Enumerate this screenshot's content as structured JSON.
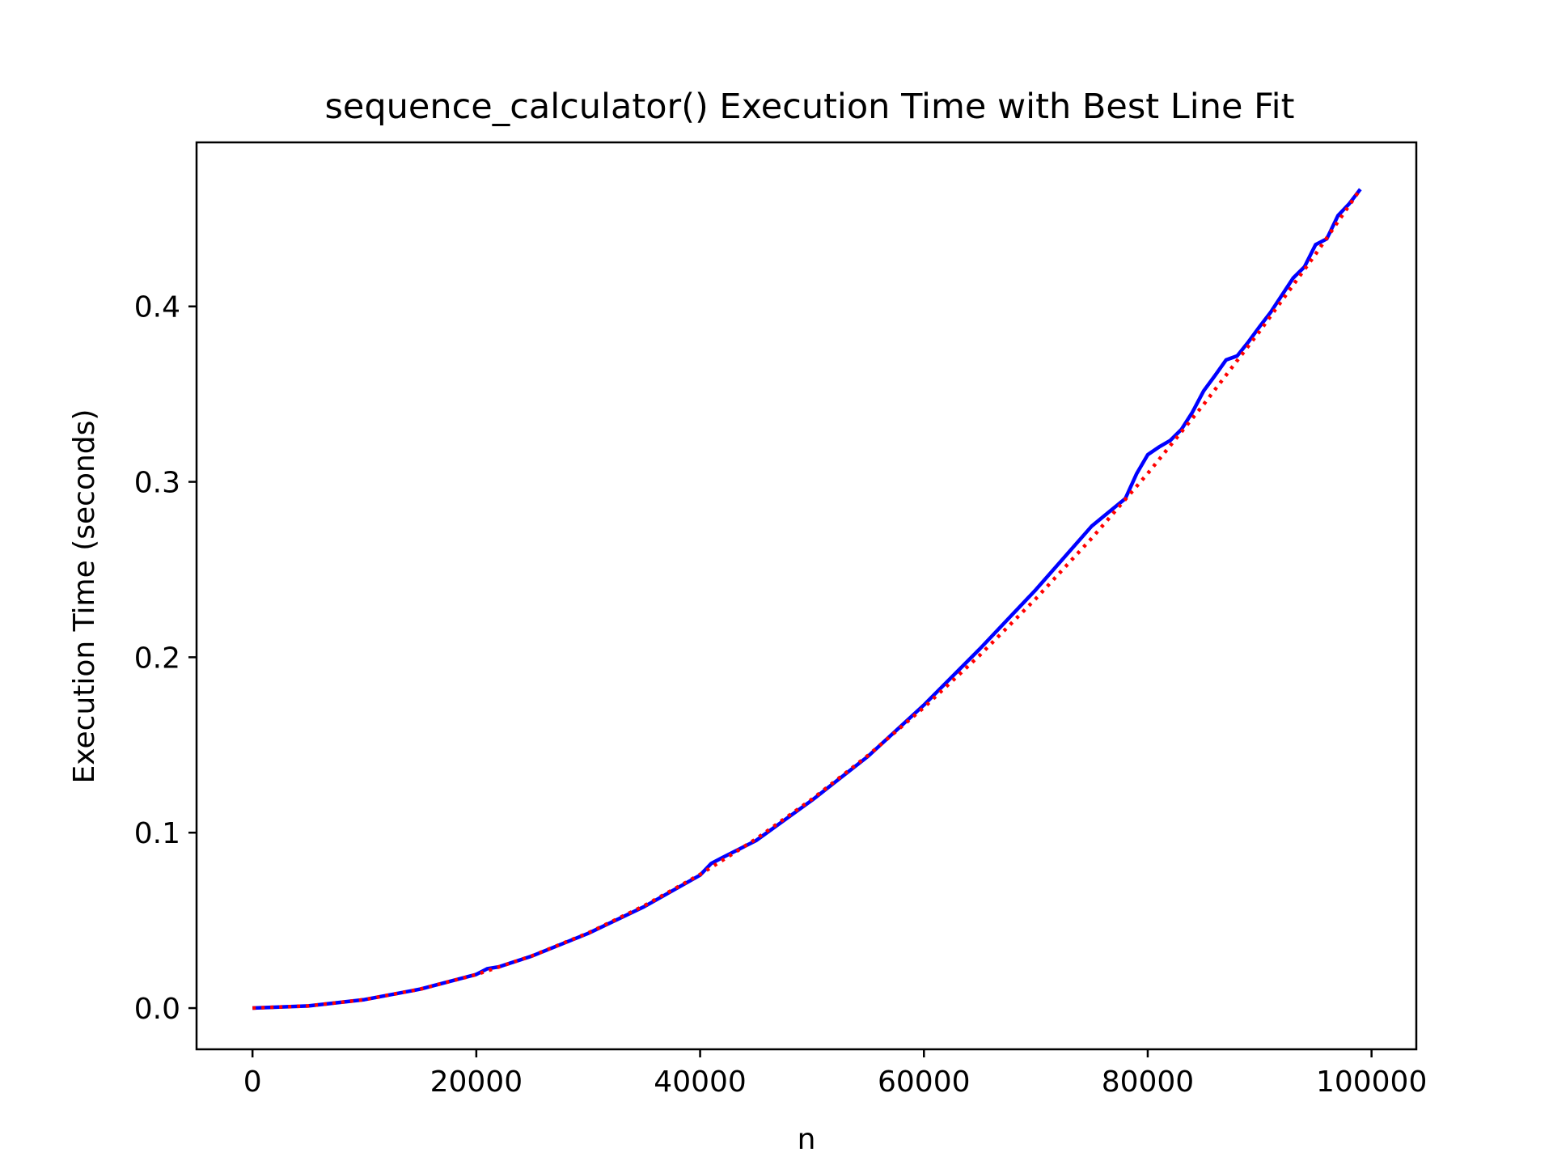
{
  "chart_data": {
    "type": "line",
    "title": "sequence_calculator() Execution Time with Best Line Fit",
    "xlabel": "n",
    "ylabel": "Execution Time (seconds)",
    "xlim": [
      -5000,
      104000
    ],
    "ylim": [
      -0.0235,
      0.4935
    ],
    "xticks": [
      0,
      20000,
      40000,
      60000,
      80000,
      100000
    ],
    "xtick_labels": [
      "0",
      "20000",
      "40000",
      "60000",
      "80000",
      "100000"
    ],
    "yticks": [
      0.0,
      0.1,
      0.2,
      0.3,
      0.4
    ],
    "ytick_labels": [
      "0.0",
      "0.1",
      "0.2",
      "0.3",
      "0.4"
    ],
    "grid": false,
    "legend": "none",
    "series": [
      {
        "style": "solid",
        "color": "#0000ff",
        "x": [
          0,
          5000,
          10000,
          15000,
          20000,
          21000,
          22000,
          25000,
          30000,
          35000,
          40000,
          41000,
          42000,
          45000,
          50000,
          55000,
          60000,
          65000,
          70000,
          75000,
          78000,
          79000,
          80000,
          81000,
          82000,
          83000,
          84000,
          85000,
          86000,
          87000,
          88000,
          89000,
          90000,
          91000,
          92000,
          93000,
          94000,
          95000,
          96000,
          97000,
          98000,
          99000
        ],
        "y": [
          0.0,
          0.0012,
          0.0048,
          0.0108,
          0.0192,
          0.0225,
          0.0235,
          0.0297,
          0.0426,
          0.0578,
          0.0758,
          0.0825,
          0.0858,
          0.0955,
          0.1185,
          0.1435,
          0.1728,
          0.2048,
          0.2385,
          0.2748,
          0.2905,
          0.3045,
          0.3155,
          0.3198,
          0.3235,
          0.3298,
          0.3398,
          0.3518,
          0.3605,
          0.3695,
          0.3718,
          0.3798,
          0.3885,
          0.3968,
          0.4065,
          0.4162,
          0.4225,
          0.4352,
          0.4385,
          0.4518,
          0.4585,
          0.4668
        ]
      },
      {
        "style": "dotted",
        "color": "#ff0000",
        "x": [
          0,
          5000,
          10000,
          15000,
          20000,
          25000,
          30000,
          35000,
          40000,
          45000,
          50000,
          55000,
          60000,
          65000,
          70000,
          75000,
          80000,
          85000,
          90000,
          95000,
          99000
        ],
        "y": [
          0.0,
          0.0012,
          0.0048,
          0.0108,
          0.0191,
          0.0298,
          0.0428,
          0.0583,
          0.0762,
          0.0964,
          0.1191,
          0.144,
          0.1714,
          0.2012,
          0.2334,
          0.2679,
          0.3048,
          0.3441,
          0.3858,
          0.4298,
          0.4668
        ]
      }
    ]
  }
}
